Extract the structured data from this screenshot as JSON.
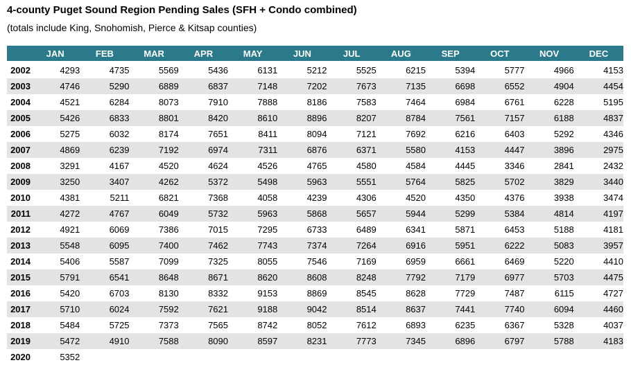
{
  "title": "4-county Puget Sound Region Pending Sales (SFH + Condo combined)",
  "subtitle": "(totals include King, Snohomish, Pierce & Kitsap counties)",
  "colors": {
    "header_bg": "#2b7a8c",
    "header_text": "#ffffff",
    "stripe": "#e3e3e3"
  },
  "chart_data": {
    "type": "table",
    "title": "4-county Puget Sound Region Pending Sales (SFH + Condo combined)",
    "subtitle": "(totals include King, Snohomish, Pierce & Kitsap counties)",
    "columns": [
      "",
      "JAN",
      "FEB",
      "MAR",
      "APR",
      "MAY",
      "JUN",
      "JUL",
      "AUG",
      "SEP",
      "OCT",
      "NOV",
      "DEC"
    ],
    "rows": [
      {
        "year": "2002",
        "values": [
          4293,
          4735,
          5569,
          5436,
          6131,
          5212,
          5525,
          6215,
          5394,
          5777,
          4966,
          4153
        ]
      },
      {
        "year": "2003",
        "values": [
          4746,
          5290,
          6889,
          6837,
          7148,
          7202,
          7673,
          7135,
          6698,
          6552,
          4904,
          4454
        ]
      },
      {
        "year": "2004",
        "values": [
          4521,
          6284,
          8073,
          7910,
          7888,
          8186,
          7583,
          7464,
          6984,
          6761,
          6228,
          5195
        ]
      },
      {
        "year": "2005",
        "values": [
          5426,
          6833,
          8801,
          8420,
          8610,
          8896,
          8207,
          8784,
          7561,
          7157,
          6188,
          4837
        ]
      },
      {
        "year": "2006",
        "values": [
          5275,
          6032,
          8174,
          7651,
          8411,
          8094,
          7121,
          7692,
          6216,
          6403,
          5292,
          4346
        ]
      },
      {
        "year": "2007",
        "values": [
          4869,
          6239,
          7192,
          6974,
          7311,
          6876,
          6371,
          5580,
          4153,
          4447,
          3896,
          2975
        ]
      },
      {
        "year": "2008",
        "values": [
          3291,
          4167,
          4520,
          4624,
          4526,
          4765,
          4580,
          4584,
          4445,
          3346,
          2841,
          2432
        ]
      },
      {
        "year": "2009",
        "values": [
          3250,
          3407,
          4262,
          5372,
          5498,
          5963,
          5551,
          5764,
          5825,
          5702,
          3829,
          3440
        ]
      },
      {
        "year": "2010",
        "values": [
          4381,
          5211,
          6821,
          7368,
          4058,
          4239,
          4306,
          4520,
          4350,
          4376,
          3938,
          3474
        ]
      },
      {
        "year": "2011",
        "values": [
          4272,
          4767,
          6049,
          5732,
          5963,
          5868,
          5657,
          5944,
          5299,
          5384,
          4814,
          4197
        ]
      },
      {
        "year": "2012",
        "values": [
          4921,
          6069,
          7386,
          7015,
          7295,
          6733,
          6489,
          6341,
          5871,
          6453,
          5188,
          4181
        ]
      },
      {
        "year": "2013",
        "values": [
          5548,
          6095,
          7400,
          7462,
          7743,
          7374,
          7264,
          6916,
          5951,
          6222,
          5083,
          3957
        ]
      },
      {
        "year": "2014",
        "values": [
          5406,
          5587,
          7099,
          7325,
          8055,
          7546,
          7169,
          6959,
          6661,
          6469,
          5220,
          4410
        ]
      },
      {
        "year": "2015",
        "values": [
          5791,
          6541,
          8648,
          8671,
          8620,
          8608,
          8248,
          7792,
          7179,
          6977,
          5703,
          4475
        ]
      },
      {
        "year": "2016",
        "values": [
          5420,
          6703,
          8130,
          8332,
          9153,
          8869,
          8545,
          8628,
          7729,
          7487,
          6115,
          4727
        ]
      },
      {
        "year": "2017",
        "values": [
          5710,
          6024,
          7592,
          7621,
          9188,
          9042,
          8514,
          8637,
          7441,
          7740,
          6094,
          4460
        ]
      },
      {
        "year": "2018",
        "values": [
          5484,
          5725,
          7373,
          7565,
          8742,
          8052,
          7612,
          6893,
          6235,
          6367,
          5328,
          4037
        ]
      },
      {
        "year": "2019",
        "values": [
          5472,
          4910,
          7588,
          8090,
          8597,
          8231,
          7773,
          7345,
          6896,
          6797,
          5788,
          4183
        ]
      },
      {
        "year": "2020",
        "values": [
          5352,
          null,
          null,
          null,
          null,
          null,
          null,
          null,
          null,
          null,
          null,
          null
        ]
      }
    ]
  }
}
